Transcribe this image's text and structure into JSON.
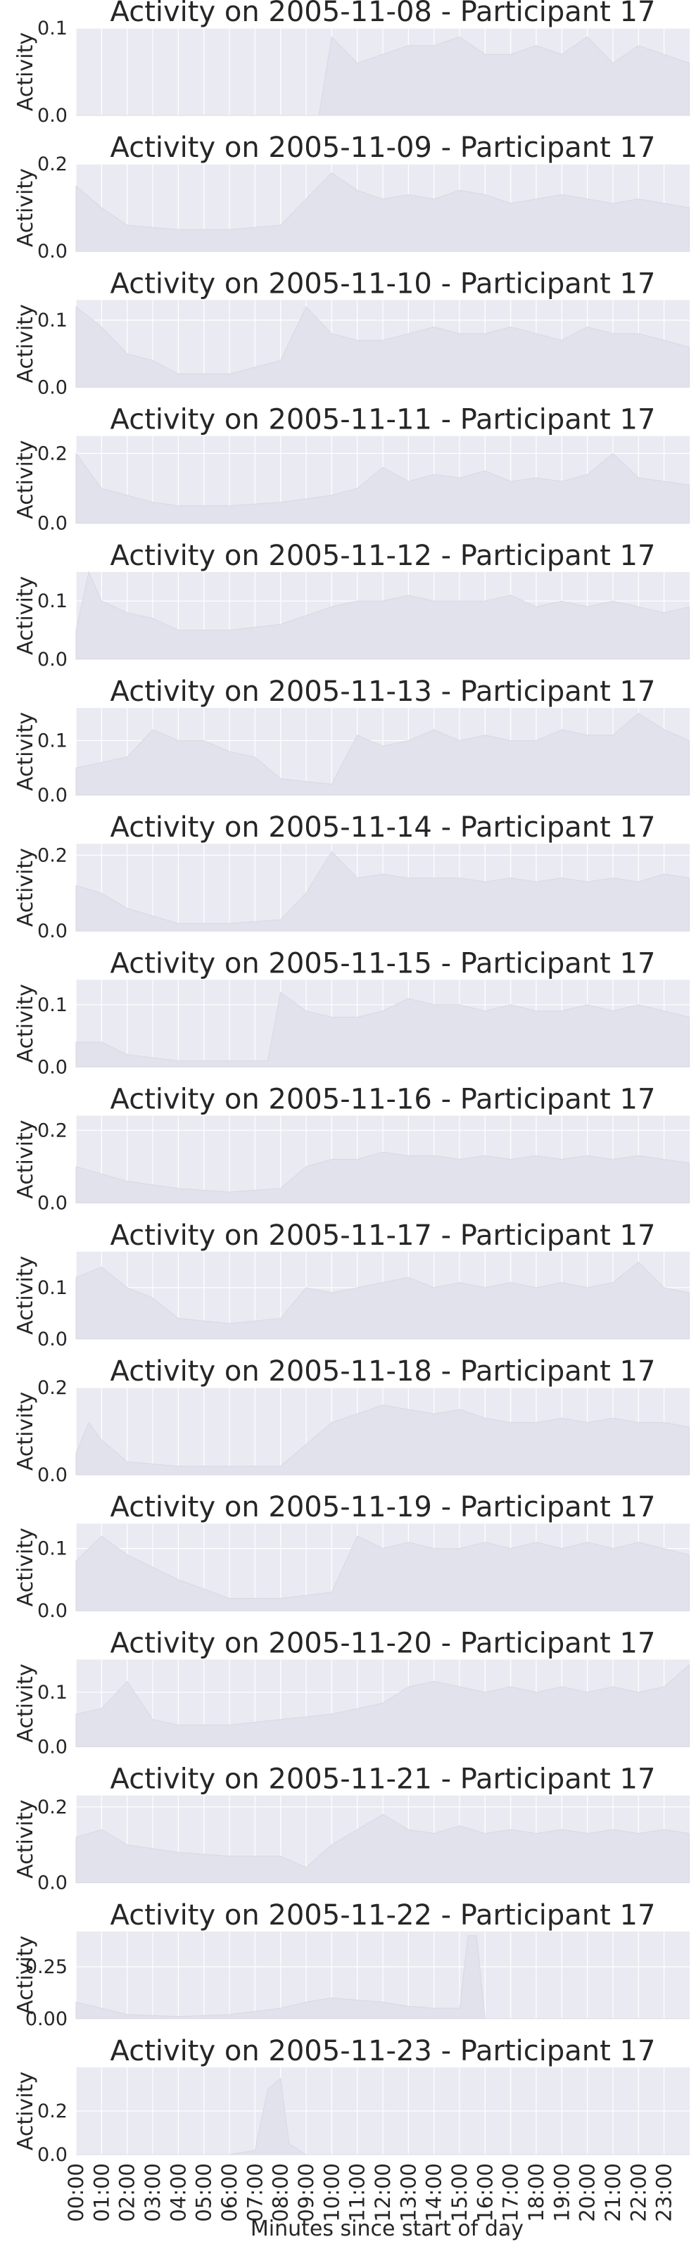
{
  "chart_data": [
    {
      "type": "area",
      "title": "Activity on 2005-11-08 - Participant 17",
      "ylabel": "Activity",
      "ylim": [
        0,
        0.1
      ],
      "yticks": [
        "0.0",
        "0.1"
      ],
      "x": [
        "00:00",
        "02:00",
        "04:00",
        "06:00",
        "08:00",
        "09:30",
        "10:00",
        "11:00",
        "12:00",
        "13:00",
        "14:00",
        "15:00",
        "16:00",
        "17:00",
        "18:00",
        "19:00",
        "20:00",
        "21:00",
        "22:00",
        "23:00",
        "23:59"
      ],
      "values": [
        0,
        0,
        0,
        0,
        0,
        0,
        0.09,
        0.06,
        0.07,
        0.08,
        0.08,
        0.09,
        0.07,
        0.07,
        0.08,
        0.07,
        0.09,
        0.06,
        0.08,
        0.07,
        0.06
      ]
    },
    {
      "type": "area",
      "title": "Activity on 2005-11-09 - Participant 17",
      "ylabel": "Activity",
      "ylim": [
        0,
        0.2
      ],
      "yticks": [
        "0.0",
        "0.2"
      ],
      "x": [
        "00:00",
        "01:00",
        "02:00",
        "04:00",
        "06:00",
        "08:00",
        "10:00",
        "11:00",
        "12:00",
        "13:00",
        "14:00",
        "15:00",
        "16:00",
        "17:00",
        "18:00",
        "19:00",
        "20:00",
        "21:00",
        "22:00",
        "23:00",
        "23:59"
      ],
      "values": [
        0.15,
        0.1,
        0.06,
        0.05,
        0.05,
        0.06,
        0.18,
        0.14,
        0.12,
        0.13,
        0.12,
        0.14,
        0.13,
        0.11,
        0.12,
        0.13,
        0.12,
        0.11,
        0.12,
        0.11,
        0.1
      ]
    },
    {
      "type": "area",
      "title": "Activity on 2005-11-10 - Participant 17",
      "ylabel": "Activity",
      "ylim": [
        0,
        0.13
      ],
      "yticks": [
        "0.0",
        "0.1"
      ],
      "x": [
        "00:00",
        "01:00",
        "02:00",
        "03:00",
        "04:00",
        "06:00",
        "08:00",
        "09:00",
        "10:00",
        "11:00",
        "12:00",
        "13:00",
        "14:00",
        "15:00",
        "16:00",
        "17:00",
        "18:00",
        "19:00",
        "20:00",
        "21:00",
        "22:00",
        "23:00",
        "23:59"
      ],
      "values": [
        0.12,
        0.09,
        0.05,
        0.04,
        0.02,
        0.02,
        0.04,
        0.12,
        0.08,
        0.07,
        0.07,
        0.08,
        0.09,
        0.08,
        0.08,
        0.09,
        0.08,
        0.07,
        0.09,
        0.08,
        0.08,
        0.07,
        0.06
      ]
    },
    {
      "type": "area",
      "title": "Activity on 2005-11-11 - Participant 17",
      "ylabel": "Activity",
      "ylim": [
        0,
        0.25
      ],
      "yticks": [
        "0.0",
        "0.2"
      ],
      "x": [
        "00:00",
        "01:00",
        "02:00",
        "03:00",
        "04:00",
        "06:00",
        "08:00",
        "10:00",
        "11:00",
        "12:00",
        "13:00",
        "14:00",
        "15:00",
        "16:00",
        "17:00",
        "18:00",
        "19:00",
        "20:00",
        "21:00",
        "22:00",
        "23:00",
        "23:59"
      ],
      "values": [
        0.2,
        0.1,
        0.08,
        0.06,
        0.05,
        0.05,
        0.06,
        0.08,
        0.1,
        0.16,
        0.12,
        0.14,
        0.13,
        0.15,
        0.12,
        0.13,
        0.12,
        0.14,
        0.2,
        0.13,
        0.12,
        0.11
      ]
    },
    {
      "type": "area",
      "title": "Activity on 2005-11-12 - Participant 17",
      "ylabel": "Activity",
      "ylim": [
        0,
        0.15
      ],
      "yticks": [
        "0.0",
        "0.1"
      ],
      "x": [
        "00:00",
        "00:30",
        "01:00",
        "02:00",
        "03:00",
        "04:00",
        "06:00",
        "08:00",
        "10:00",
        "11:00",
        "12:00",
        "13:00",
        "14:00",
        "15:00",
        "16:00",
        "17:00",
        "18:00",
        "19:00",
        "20:00",
        "21:00",
        "22:00",
        "23:00",
        "23:59"
      ],
      "values": [
        0.05,
        0.15,
        0.1,
        0.08,
        0.07,
        0.05,
        0.05,
        0.06,
        0.09,
        0.1,
        0.1,
        0.11,
        0.1,
        0.1,
        0.1,
        0.11,
        0.09,
        0.1,
        0.09,
        0.1,
        0.09,
        0.08,
        0.09
      ]
    },
    {
      "type": "area",
      "title": "Activity on 2005-11-13 - Participant 17",
      "ylabel": "Activity",
      "ylim": [
        0,
        0.16
      ],
      "yticks": [
        "0.0",
        "0.1"
      ],
      "x": [
        "00:00",
        "01:00",
        "02:00",
        "03:00",
        "04:00",
        "05:00",
        "06:00",
        "07:00",
        "08:00",
        "10:00",
        "11:00",
        "12:00",
        "13:00",
        "14:00",
        "15:00",
        "16:00",
        "17:00",
        "18:00",
        "19:00",
        "20:00",
        "21:00",
        "22:00",
        "23:00",
        "23:59"
      ],
      "values": [
        0.05,
        0.06,
        0.07,
        0.12,
        0.1,
        0.1,
        0.08,
        0.07,
        0.03,
        0.02,
        0.11,
        0.09,
        0.1,
        0.12,
        0.1,
        0.11,
        0.1,
        0.1,
        0.12,
        0.11,
        0.11,
        0.15,
        0.12,
        0.1
      ]
    },
    {
      "type": "area",
      "title": "Activity on 2005-11-14 - Participant 17",
      "ylabel": "Activity",
      "ylim": [
        0,
        0.23
      ],
      "yticks": [
        "0.0",
        "0.2"
      ],
      "x": [
        "00:00",
        "01:00",
        "02:00",
        "04:00",
        "06:00",
        "08:00",
        "09:00",
        "10:00",
        "11:00",
        "12:00",
        "13:00",
        "14:00",
        "15:00",
        "16:00",
        "17:00",
        "18:00",
        "19:00",
        "20:00",
        "21:00",
        "22:00",
        "23:00",
        "23:59"
      ],
      "values": [
        0.12,
        0.1,
        0.06,
        0.02,
        0.02,
        0.03,
        0.1,
        0.21,
        0.14,
        0.15,
        0.14,
        0.14,
        0.14,
        0.13,
        0.14,
        0.13,
        0.14,
        0.13,
        0.14,
        0.13,
        0.15,
        0.14
      ]
    },
    {
      "type": "area",
      "title": "Activity on 2005-11-15 - Participant 17",
      "ylabel": "Activity",
      "ylim": [
        0,
        0.14
      ],
      "yticks": [
        "0.0",
        "0.1"
      ],
      "x": [
        "00:00",
        "01:00",
        "02:00",
        "04:00",
        "06:00",
        "07:30",
        "08:00",
        "09:00",
        "10:00",
        "11:00",
        "12:00",
        "13:00",
        "14:00",
        "15:00",
        "16:00",
        "17:00",
        "18:00",
        "19:00",
        "20:00",
        "21:00",
        "22:00",
        "23:00",
        "23:59"
      ],
      "values": [
        0.04,
        0.04,
        0.02,
        0.01,
        0.01,
        0.01,
        0.12,
        0.09,
        0.08,
        0.08,
        0.09,
        0.11,
        0.1,
        0.1,
        0.09,
        0.1,
        0.09,
        0.09,
        0.1,
        0.09,
        0.1,
        0.09,
        0.08
      ]
    },
    {
      "type": "area",
      "title": "Activity on 2005-11-16 - Participant 17",
      "ylabel": "Activity",
      "ylim": [
        0,
        0.24
      ],
      "yticks": [
        "0.0",
        "0.2"
      ],
      "x": [
        "00:00",
        "01:00",
        "02:00",
        "04:00",
        "06:00",
        "08:00",
        "09:00",
        "10:00",
        "11:00",
        "12:00",
        "13:00",
        "14:00",
        "15:00",
        "16:00",
        "17:00",
        "18:00",
        "19:00",
        "20:00",
        "21:00",
        "22:00",
        "23:00",
        "23:59"
      ],
      "values": [
        0.1,
        0.08,
        0.06,
        0.04,
        0.03,
        0.04,
        0.1,
        0.12,
        0.12,
        0.14,
        0.13,
        0.13,
        0.12,
        0.13,
        0.12,
        0.13,
        0.12,
        0.13,
        0.12,
        0.13,
        0.12,
        0.11
      ]
    },
    {
      "type": "area",
      "title": "Activity on 2005-11-17 - Participant 17",
      "ylabel": "Activity",
      "ylim": [
        0,
        0.17
      ],
      "yticks": [
        "0.0",
        "0.1"
      ],
      "x": [
        "00:00",
        "01:00",
        "02:00",
        "03:00",
        "04:00",
        "06:00",
        "08:00",
        "09:00",
        "10:00",
        "11:00",
        "12:00",
        "13:00",
        "14:00",
        "15:00",
        "16:00",
        "17:00",
        "18:00",
        "19:00",
        "20:00",
        "21:00",
        "22:00",
        "23:00",
        "23:59"
      ],
      "values": [
        0.12,
        0.14,
        0.1,
        0.08,
        0.04,
        0.03,
        0.04,
        0.1,
        0.09,
        0.1,
        0.11,
        0.12,
        0.1,
        0.11,
        0.1,
        0.11,
        0.1,
        0.11,
        0.1,
        0.11,
        0.15,
        0.1,
        0.09
      ]
    },
    {
      "type": "area",
      "title": "Activity on 2005-11-18 - Participant 17",
      "ylabel": "Activity",
      "ylim": [
        0,
        0.2
      ],
      "yticks": [
        "0.0",
        "0.2"
      ],
      "x": [
        "00:00",
        "00:30",
        "01:00",
        "02:00",
        "04:00",
        "06:00",
        "08:00",
        "10:00",
        "11:00",
        "12:00",
        "13:00",
        "14:00",
        "15:00",
        "16:00",
        "17:00",
        "18:00",
        "19:00",
        "20:00",
        "21:00",
        "22:00",
        "23:00",
        "23:59"
      ],
      "values": [
        0.05,
        0.12,
        0.08,
        0.03,
        0.02,
        0.02,
        0.02,
        0.12,
        0.14,
        0.16,
        0.15,
        0.14,
        0.15,
        0.13,
        0.12,
        0.12,
        0.13,
        0.12,
        0.13,
        0.12,
        0.12,
        0.11
      ]
    },
    {
      "type": "area",
      "title": "Activity on 2005-11-19 - Participant 17",
      "ylabel": "Activity",
      "ylim": [
        0,
        0.14
      ],
      "yticks": [
        "0.0",
        "0.1"
      ],
      "x": [
        "00:00",
        "01:00",
        "02:00",
        "03:00",
        "04:00",
        "06:00",
        "08:00",
        "10:00",
        "11:00",
        "12:00",
        "13:00",
        "14:00",
        "15:00",
        "16:00",
        "17:00",
        "18:00",
        "19:00",
        "20:00",
        "21:00",
        "22:00",
        "23:00",
        "23:59"
      ],
      "values": [
        0.08,
        0.12,
        0.09,
        0.07,
        0.05,
        0.02,
        0.02,
        0.03,
        0.12,
        0.1,
        0.11,
        0.1,
        0.1,
        0.11,
        0.1,
        0.11,
        0.1,
        0.11,
        0.1,
        0.11,
        0.1,
        0.09
      ]
    },
    {
      "type": "area",
      "title": "Activity on 2005-11-20 - Participant 17",
      "ylabel": "Activity",
      "ylim": [
        0,
        0.16
      ],
      "yticks": [
        "0.0",
        "0.1"
      ],
      "x": [
        "00:00",
        "01:00",
        "02:00",
        "03:00",
        "04:00",
        "06:00",
        "08:00",
        "10:00",
        "12:00",
        "13:00",
        "14:00",
        "15:00",
        "16:00",
        "17:00",
        "18:00",
        "19:00",
        "20:00",
        "21:00",
        "22:00",
        "23:00",
        "23:59"
      ],
      "values": [
        0.06,
        0.07,
        0.12,
        0.05,
        0.04,
        0.04,
        0.05,
        0.06,
        0.08,
        0.11,
        0.12,
        0.11,
        0.1,
        0.11,
        0.1,
        0.11,
        0.1,
        0.11,
        0.1,
        0.11,
        0.15
      ]
    },
    {
      "type": "area",
      "title": "Activity on 2005-11-21 - Participant 17",
      "ylabel": "Activity",
      "ylim": [
        0,
        0.23
      ],
      "yticks": [
        "0.0",
        "0.2"
      ],
      "x": [
        "00:00",
        "01:00",
        "02:00",
        "04:00",
        "06:00",
        "08:00",
        "09:00",
        "10:00",
        "11:00",
        "12:00",
        "13:00",
        "14:00",
        "15:00",
        "16:00",
        "17:00",
        "18:00",
        "19:00",
        "20:00",
        "21:00",
        "22:00",
        "23:00",
        "23:59"
      ],
      "values": [
        0.12,
        0.14,
        0.1,
        0.08,
        0.07,
        0.07,
        0.04,
        0.1,
        0.14,
        0.18,
        0.14,
        0.13,
        0.15,
        0.13,
        0.14,
        0.13,
        0.14,
        0.13,
        0.14,
        0.13,
        0.14,
        0.13
      ]
    },
    {
      "type": "area",
      "title": "Activity on 2005-11-22 - Participant 17",
      "ylabel": "Activity",
      "ylim": [
        0,
        0.42
      ],
      "yticks": [
        "0.00",
        "0.25"
      ],
      "x": [
        "00:00",
        "01:00",
        "02:00",
        "04:00",
        "06:00",
        "08:00",
        "09:00",
        "10:00",
        "11:00",
        "12:00",
        "13:00",
        "14:00",
        "15:00",
        "15:20",
        "15:40",
        "16:00",
        "18:00",
        "20:00",
        "22:00",
        "23:59"
      ],
      "values": [
        0.08,
        0.05,
        0.02,
        0.01,
        0.02,
        0.05,
        0.08,
        0.1,
        0.09,
        0.08,
        0.06,
        0.05,
        0.05,
        0.4,
        0.4,
        0,
        0,
        0,
        0,
        0
      ]
    },
    {
      "type": "area",
      "title": "Activity on 2005-11-23 - Participant 17",
      "ylabel": "Activity",
      "ylim": [
        0,
        0.4
      ],
      "yticks": [
        "0.0",
        "0.2"
      ],
      "x": [
        "00:00",
        "02:00",
        "04:00",
        "06:00",
        "07:00",
        "07:30",
        "08:00",
        "08:20",
        "09:00",
        "12:00",
        "16:00",
        "20:00",
        "23:59"
      ],
      "values": [
        0,
        0,
        0,
        0,
        0.02,
        0.3,
        0.35,
        0.05,
        0,
        0,
        0,
        0,
        0
      ]
    }
  ],
  "x_axis": {
    "label": "Minutes since start of day",
    "ticks": [
      "00:00",
      "01:00",
      "02:00",
      "03:00",
      "04:00",
      "05:00",
      "06:00",
      "07:00",
      "08:00",
      "09:00",
      "10:00",
      "11:00",
      "12:00",
      "13:00",
      "14:00",
      "15:00",
      "16:00",
      "17:00",
      "18:00",
      "19:00",
      "20:00",
      "21:00",
      "22:00",
      "23:00"
    ]
  },
  "colors": {
    "panel_bg": "#eaeaf2",
    "grid": "#ffffff",
    "fill": "#e2e2ec",
    "text": "#262626"
  }
}
